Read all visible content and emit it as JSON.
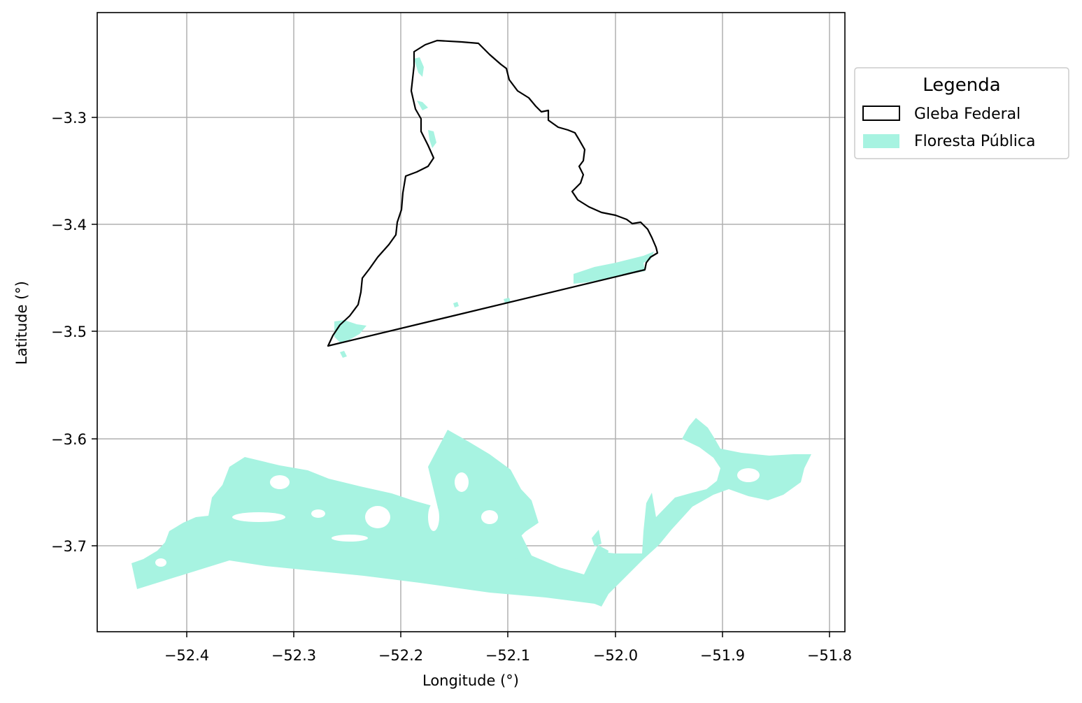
{
  "map": {
    "xlabel": "Longitude (°)",
    "ylabel": "Latitude (°)",
    "x_ticks": [
      "−52.4",
      "−52.3",
      "−52.2",
      "−52.1",
      "−52.0",
      "−51.9",
      "−51.8"
    ],
    "y_ticks": [
      "−3.3",
      "−3.4",
      "−3.5",
      "−3.6",
      "−3.7"
    ],
    "grid": true
  },
  "legend": {
    "title": "Legenda",
    "items": [
      {
        "label": "Gleba Federal",
        "style": "outline",
        "color": "#000000"
      },
      {
        "label": "Floresta Pública",
        "style": "fill",
        "color": "#a7f3e1"
      }
    ],
    "placement": "outside-right-top"
  },
  "colors": {
    "forest_fill": "#a7f3e1",
    "gleba_edge": "#000000",
    "grid": "#b0b0b0"
  }
}
